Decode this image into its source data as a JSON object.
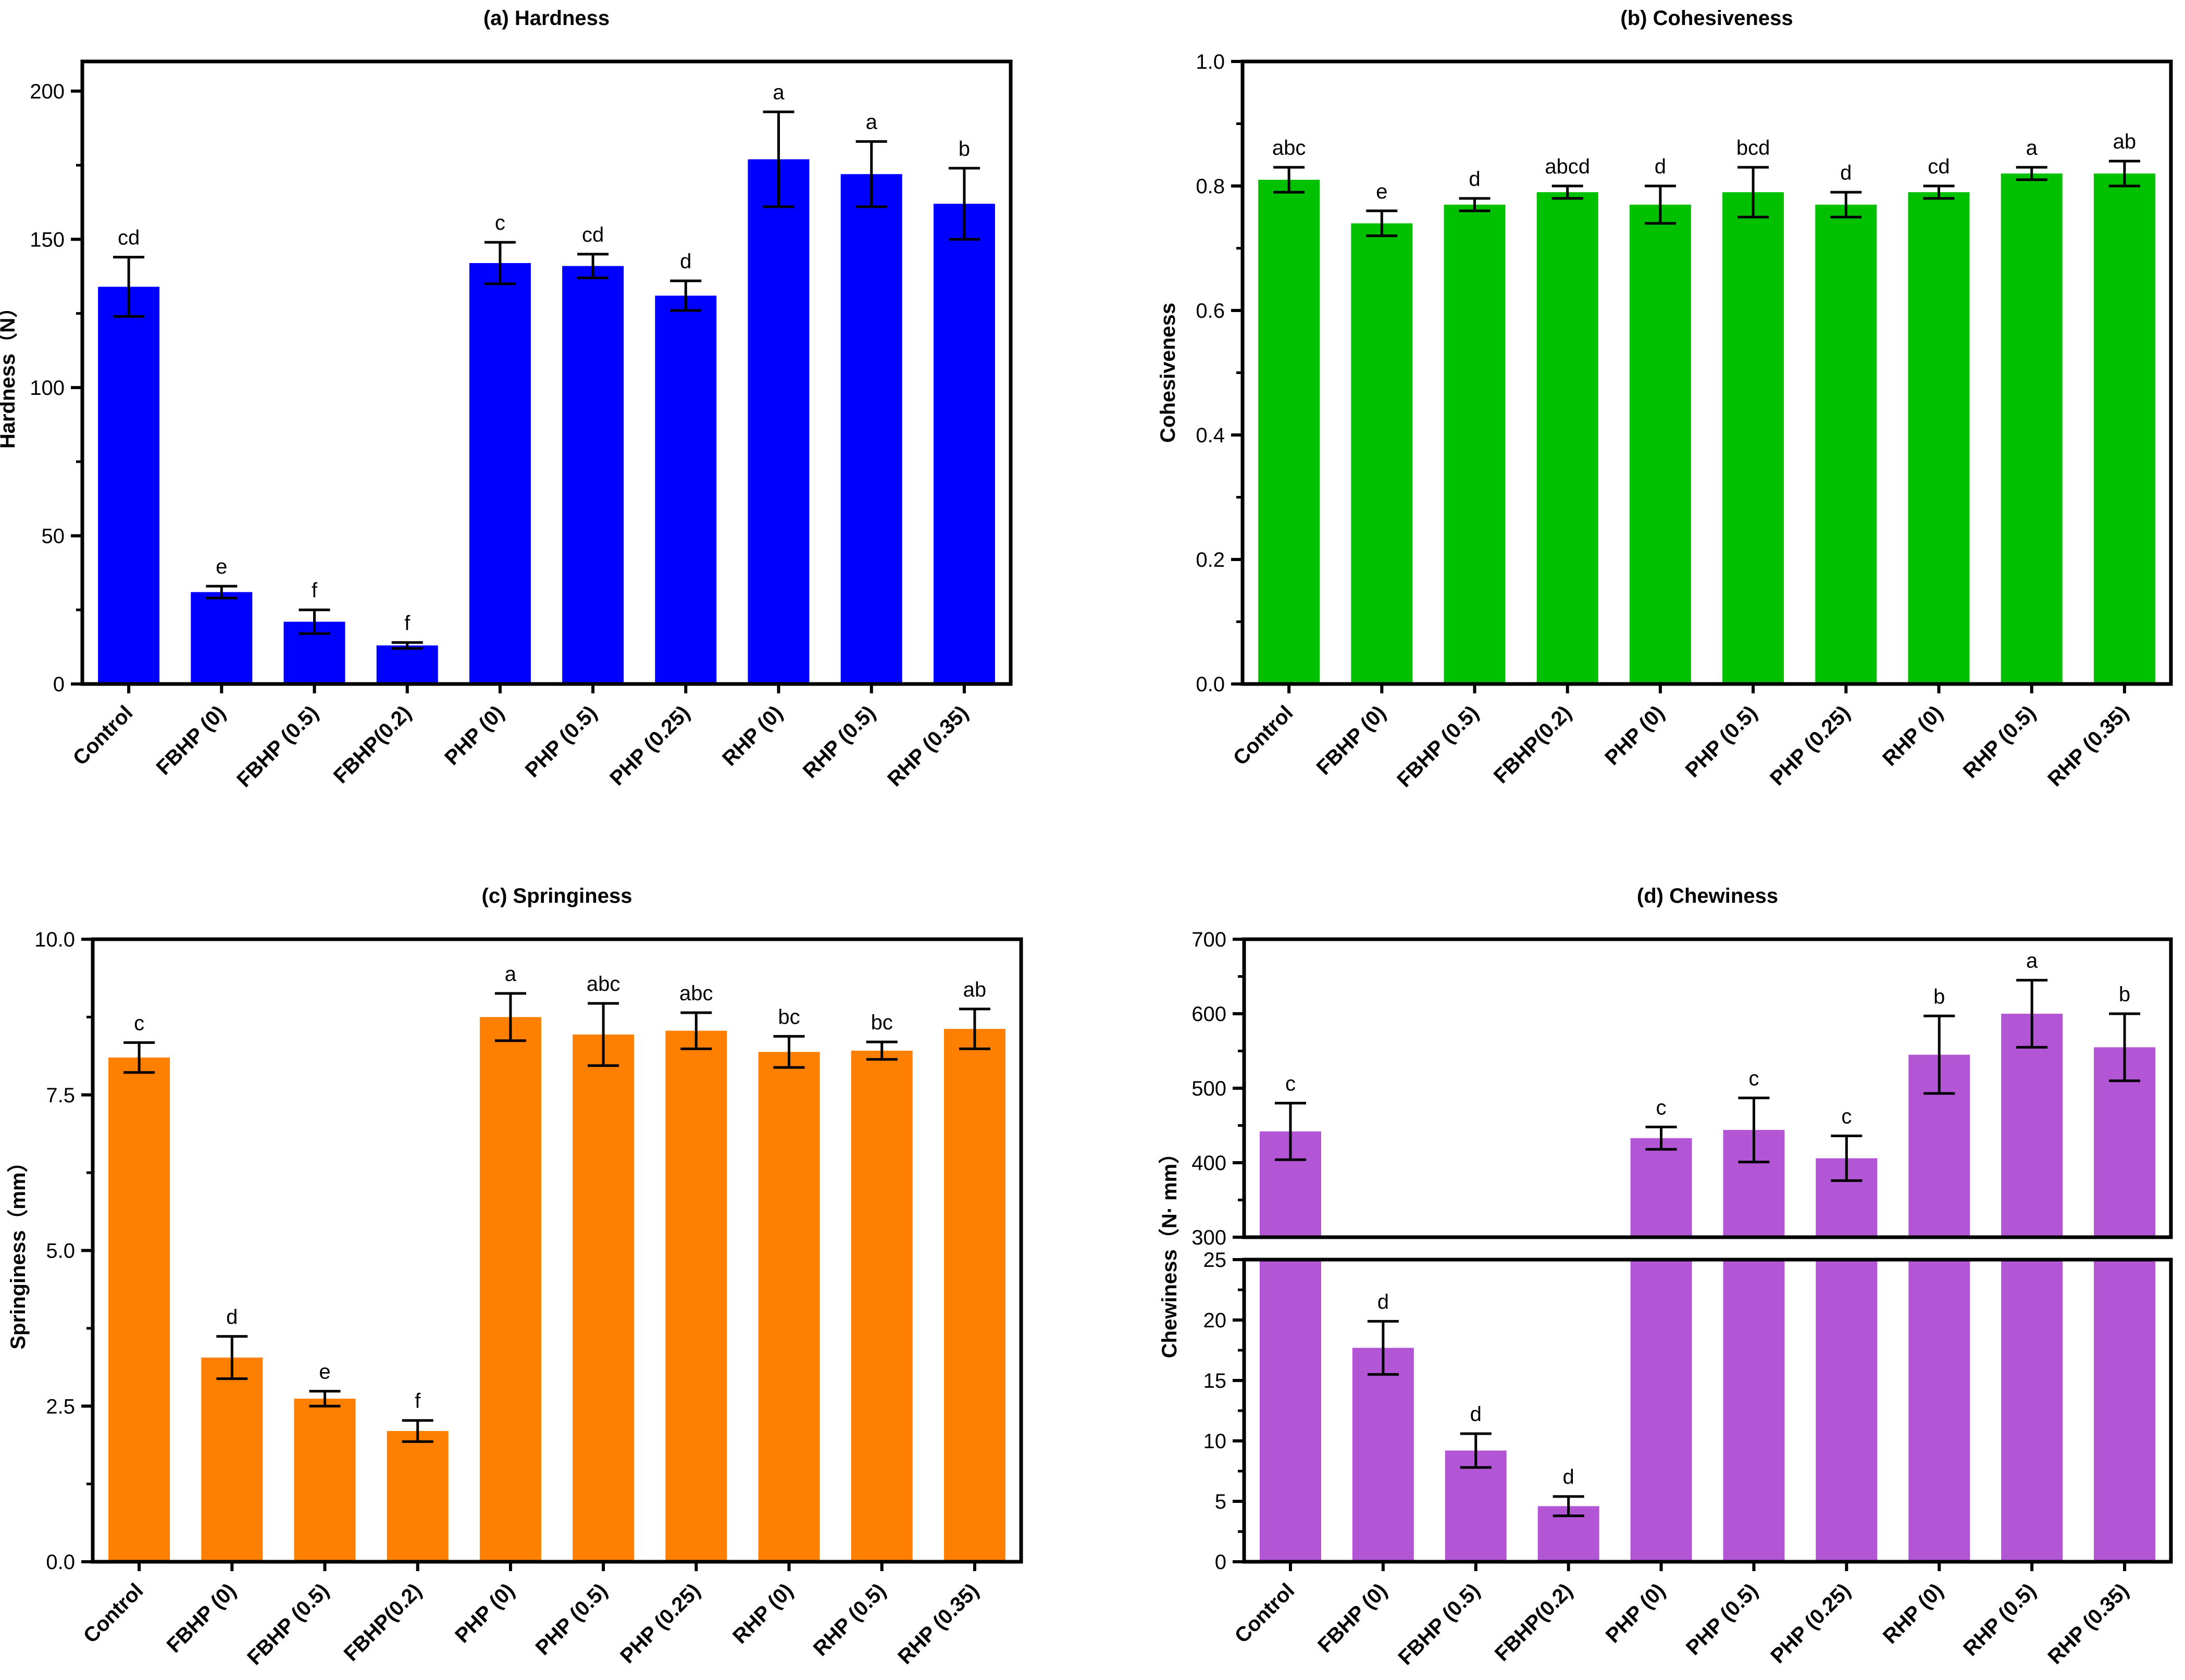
{
  "colors": {
    "hardness": "#0000ff",
    "cohesiveness": "#00c000",
    "springiness": "#ff8000",
    "chewiness": "#b356d6",
    "axis": "#000000"
  },
  "chart_data": [
    {
      "type": "bar",
      "title": "(a) Hardness",
      "ylabel": "Hardness（N）",
      "ylim": [
        0,
        210
      ],
      "yticks": [
        "0",
        "50",
        "100",
        "150",
        "200"
      ],
      "ytick_values": [
        0,
        50,
        100,
        150,
        200
      ],
      "categories": [
        "Control",
        "FBHP (0)",
        "FBHP (0.5)",
        "FBHP(0.2)",
        "PHP (0)",
        "PHP (0.5)",
        "PHP (0.25)",
        "RHP (0)",
        "RHP (0.5)",
        "RHP (0.35)"
      ],
      "values": [
        134,
        31,
        21,
        13,
        142,
        141,
        131,
        177,
        172,
        162
      ],
      "errors": [
        10,
        2,
        4,
        1,
        7,
        4,
        5,
        16,
        11,
        12
      ],
      "significance": [
        "cd",
        "e",
        "f",
        "f",
        "c",
        "cd",
        "d",
        "a",
        "a",
        "b"
      ],
      "color": "#0000ff"
    },
    {
      "type": "bar",
      "title": "(b) Cohesiveness",
      "ylabel": "Cohesiveness",
      "ylim": [
        0,
        1.0
      ],
      "yticks": [
        "0.0",
        "0.2",
        "0.4",
        "0.6",
        "0.8",
        "1.0"
      ],
      "ytick_values": [
        0,
        0.2,
        0.4,
        0.6,
        0.8,
        1.0
      ],
      "categories": [
        "Control",
        "FBHP (0)",
        "FBHP (0.5)",
        "FBHP(0.2)",
        "PHP (0)",
        "PHP (0.5)",
        "PHP (0.25)",
        "RHP (0)",
        "RHP (0.5)",
        "RHP (0.35)"
      ],
      "values": [
        0.81,
        0.74,
        0.77,
        0.79,
        0.77,
        0.79,
        0.77,
        0.79,
        0.82,
        0.82
      ],
      "errors": [
        0.02,
        0.02,
        0.01,
        0.01,
        0.03,
        0.04,
        0.02,
        0.01,
        0.01,
        0.02
      ],
      "significance": [
        "abc",
        "e",
        "d",
        "abcd",
        "d",
        "bcd",
        "d",
        "cd",
        "a",
        "ab"
      ],
      "color": "#00c000"
    },
    {
      "type": "bar",
      "title": "(c) Springiness",
      "ylabel": "Springiness（mm）",
      "ylim": [
        0,
        10.0
      ],
      "yticks": [
        "0.0",
        "2.5",
        "5.0",
        "7.5",
        "10.0"
      ],
      "ytick_values": [
        0,
        2.5,
        5.0,
        7.5,
        10.0
      ],
      "categories": [
        "Control",
        "FBHP (0)",
        "FBHP (0.5)",
        "FBHP(0.2)",
        "PHP (0)",
        "PHP (0.5)",
        "PHP (0.25)",
        "RHP (0)",
        "RHP (0.5)",
        "RHP (0.35)"
      ],
      "values": [
        8.1,
        3.28,
        2.62,
        2.1,
        8.75,
        8.47,
        8.53,
        8.19,
        8.21,
        8.56
      ],
      "errors": [
        0.24,
        0.34,
        0.12,
        0.17,
        0.38,
        0.5,
        0.29,
        0.25,
        0.14,
        0.32
      ],
      "significance": [
        "c",
        "d",
        "e",
        "f",
        "a",
        "abc",
        "abc",
        "bc",
        "bc",
        "ab"
      ],
      "color": "#ff8000"
    },
    {
      "type": "bar",
      "title": "(d) Chewiness",
      "ylabel": "Chewiness（N· mm）",
      "broken_axis": true,
      "ylim_lower": [
        0,
        25
      ],
      "ylim_upper": [
        300,
        700
      ],
      "yticks_lower": [
        "0",
        "5",
        "10",
        "15",
        "20",
        "25"
      ],
      "ytick_values_lower": [
        0,
        5,
        10,
        15,
        20,
        25
      ],
      "yticks_upper": [
        "300",
        "400",
        "500",
        "600",
        "700"
      ],
      "ytick_values_upper": [
        300,
        400,
        500,
        600,
        700
      ],
      "categories": [
        "Control",
        "FBHP (0)",
        "FBHP (0.5)",
        "FBHP(0.2)",
        "PHP (0)",
        "PHP (0.5)",
        "PHP (0.25)",
        "RHP (0)",
        "RHP (0.5)",
        "RHP (0.35)"
      ],
      "values": [
        442,
        17.7,
        9.2,
        4.6,
        433,
        444,
        406,
        545,
        600,
        555
      ],
      "errors": [
        38,
        2.2,
        1.4,
        0.8,
        15,
        43,
        30,
        52,
        45,
        45
      ],
      "significance": [
        "c",
        "d",
        "d",
        "d",
        "c",
        "c",
        "c",
        "b",
        "a",
        "b"
      ],
      "color": "#b356d6"
    }
  ]
}
